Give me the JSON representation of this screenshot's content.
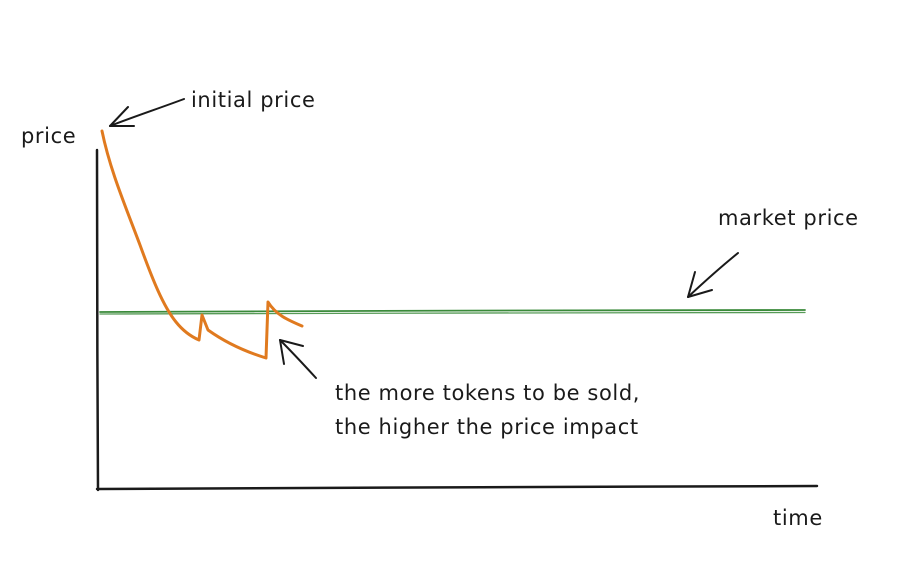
{
  "labels": {
    "y_axis": "price",
    "x_axis": "time",
    "initial_price": "initial price",
    "market_price": "market price",
    "impact_note_line1": "the more tokens to be sold,",
    "impact_note_line2": "the higher the price impact"
  },
  "colors": {
    "axis": "#1a1a1a",
    "price_curve": "#e07a1f",
    "market_line": "#3a8a3a",
    "arrow": "#1a1a1a",
    "text": "#1a1a1a",
    "background": "#ffffff"
  }
}
